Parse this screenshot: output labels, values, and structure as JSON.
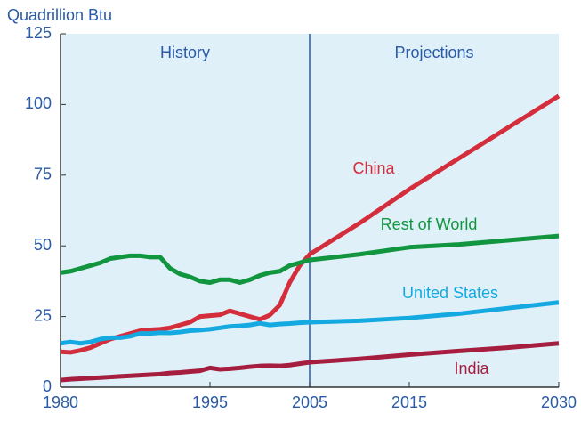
{
  "chart_data": {
    "type": "line",
    "y_axis_label": "Quadrillion Btu",
    "annotations": [
      "History",
      "Projections"
    ],
    "x": [
      1980,
      1981,
      1982,
      1983,
      1984,
      1985,
      1986,
      1987,
      1988,
      1989,
      1990,
      1991,
      1992,
      1993,
      1994,
      1995,
      1996,
      1997,
      1998,
      1999,
      2000,
      2001,
      2002,
      2003,
      2004,
      2005,
      2010,
      2015,
      2020,
      2025,
      2030
    ],
    "series": [
      {
        "name": "China",
        "color": "#d42e3c",
        "values": [
          12.5,
          12.3,
          13,
          14,
          15.5,
          17,
          18,
          19,
          20,
          20.3,
          20.5,
          21,
          22,
          23,
          25,
          25.3,
          25.6,
          27,
          26,
          25,
          24,
          25.5,
          29,
          37,
          43,
          47,
          58,
          70,
          81,
          92,
          103
        ]
      },
      {
        "name": "Rest of World",
        "color": "#11963f",
        "values": [
          40.5,
          41,
          42,
          43,
          44,
          45.5,
          46,
          46.5,
          46.5,
          46,
          46,
          42,
          40,
          39,
          37.5,
          37,
          38,
          38,
          37,
          38,
          39.5,
          40.5,
          41,
          43,
          44,
          45,
          47,
          49.5,
          50.5,
          52,
          53.5
        ]
      },
      {
        "name": "United States",
        "color": "#14a9e1",
        "values": [
          15.5,
          16,
          15.5,
          16,
          17,
          17.5,
          17.5,
          18,
          19,
          19,
          19.3,
          19.2,
          19.5,
          20,
          20.2,
          20.5,
          21,
          21.5,
          21.7,
          22,
          22.6,
          22,
          22.3,
          22.5,
          22.8,
          23,
          23.5,
          24.5,
          26,
          28,
          30
        ]
      },
      {
        "name": "India",
        "color": "#a51e3f",
        "values": [
          2.5,
          2.8,
          3,
          3.2,
          3.4,
          3.6,
          3.8,
          4,
          4.2,
          4.4,
          4.6,
          5,
          5.2,
          5.5,
          5.8,
          6.8,
          6.3,
          6.5,
          6.8,
          7.2,
          7.5,
          7.6,
          7.5,
          7.8,
          8.3,
          8.8,
          10,
          11.5,
          12.8,
          14,
          15.5
        ]
      }
    ],
    "xlim": [
      1980,
      2030
    ],
    "xticks": [
      1980,
      1995,
      2005,
      2015,
      2030
    ],
    "ylim": [
      0,
      125
    ],
    "yticks": [
      0,
      25,
      50,
      75,
      100,
      125
    ],
    "divider": 2005
  }
}
